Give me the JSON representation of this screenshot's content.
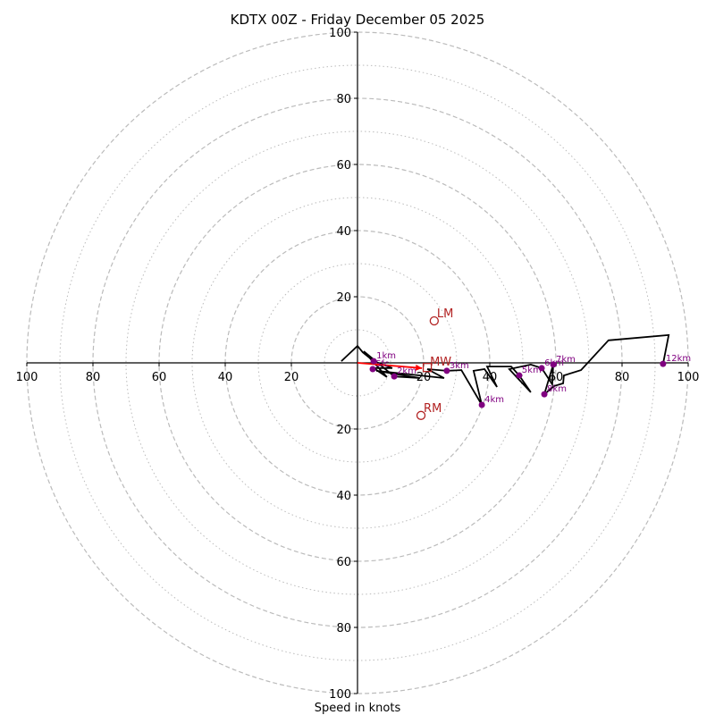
{
  "chart_data": {
    "type": "line",
    "subtype": "hodograph",
    "title": "KDTX 00Z - Friday December 05 2025",
    "xlabel": "Speed in knots",
    "ylabel": "",
    "rings": {
      "major": [
        20,
        40,
        60,
        80,
        100
      ],
      "minor": [
        10,
        30,
        50,
        70,
        90
      ],
      "major_style": "dashed",
      "minor_style": "dotted",
      "color": "#bbbbbb"
    },
    "axis_range": [
      -100,
      100
    ],
    "x_ticks": [
      {
        "value": -100,
        "label": "100"
      },
      {
        "value": -80,
        "label": "80"
      },
      {
        "value": -60,
        "label": "60"
      },
      {
        "value": -40,
        "label": "40"
      },
      {
        "value": -20,
        "label": "20"
      },
      {
        "value": 20,
        "label": "20"
      },
      {
        "value": 40,
        "label": "40"
      },
      {
        "value": 60,
        "label": "60"
      },
      {
        "value": 80,
        "label": "80"
      },
      {
        "value": 100,
        "label": "100"
      }
    ],
    "y_ticks": [
      {
        "value": 100,
        "label": "100"
      },
      {
        "value": 80,
        "label": "80"
      },
      {
        "value": 60,
        "label": "60"
      },
      {
        "value": 40,
        "label": "40"
      },
      {
        "value": 20,
        "label": "20"
      },
      {
        "value": -20,
        "label": "20"
      },
      {
        "value": -40,
        "label": "40"
      },
      {
        "value": -60,
        "label": "60"
      },
      {
        "value": -80,
        "label": "80"
      },
      {
        "value": -100,
        "label": "100"
      }
    ],
    "hodograph": {
      "color": "#000000",
      "u": [
        -4.9,
        0.0,
        1.6,
        4.9,
        10.5,
        4.9,
        8.9,
        1.9,
        11.1,
        18.9,
        5.7,
        26.2,
        21.1,
        27.0,
        31.4,
        37.6,
        35.1,
        38.4,
        42.2,
        39.2,
        46.5,
        48.9,
        52.4,
        45.9,
        52.4,
        55.7,
        58.9,
        59.2,
        56.5,
        59.5,
        62.2,
        62.4,
        67.6,
        75.9,
        94.1,
        92.4
      ],
      "v": [
        0.5,
        5.1,
        3.2,
        0.5,
        -1.6,
        -1.6,
        -4.3,
        3.5,
        -4.1,
        -4.6,
        -2.4,
        -4.6,
        -1.9,
        -2.4,
        -2.2,
        -12.7,
        -2.4,
        -1.9,
        -7.3,
        -1.1,
        -1.1,
        -3.8,
        -8.9,
        -1.9,
        -0.5,
        -1.6,
        -6.5,
        -0.5,
        -9.5,
        -7.0,
        -6.2,
        -3.8,
        -2.2,
        6.8,
        8.4,
        -0.3
      ]
    },
    "height_markers": {
      "color": "#800080",
      "points": [
        {
          "label": "Sfc",
          "u": 4.6,
          "v": -1.9
        },
        {
          "label": "1km",
          "u": 4.9,
          "v": 0.5
        },
        {
          "label": "2km",
          "u": 11.1,
          "v": -4.1
        },
        {
          "label": "3km",
          "u": 27.0,
          "v": -2.4
        },
        {
          "label": "4km",
          "u": 37.6,
          "v": -12.7
        },
        {
          "label": "5km",
          "u": 48.9,
          "v": -3.8
        },
        {
          "label": "6km",
          "u": 55.7,
          "v": -1.6
        },
        {
          "label": "7km",
          "u": 59.2,
          "v": -0.5
        },
        {
          "label": "8km",
          "u": 56.5,
          "v": -9.5
        },
        {
          "label": "12km",
          "u": 92.4,
          "v": -0.3
        }
      ]
    },
    "storm_motion": {
      "color": "#b22222",
      "left_mover": {
        "label": "LM",
        "u": 23.2,
        "v": 12.7
      },
      "right_mover": {
        "label": "RM",
        "u": 19.2,
        "v": -15.9
      },
      "mean_wind": {
        "label": "MW",
        "u": 21.1,
        "v": -1.4
      }
    },
    "shear_vector": {
      "color": "#ff0000",
      "from": {
        "u": 0.0,
        "v": 0.0
      },
      "to": {
        "u": 19.5,
        "v": -1.6
      }
    }
  }
}
